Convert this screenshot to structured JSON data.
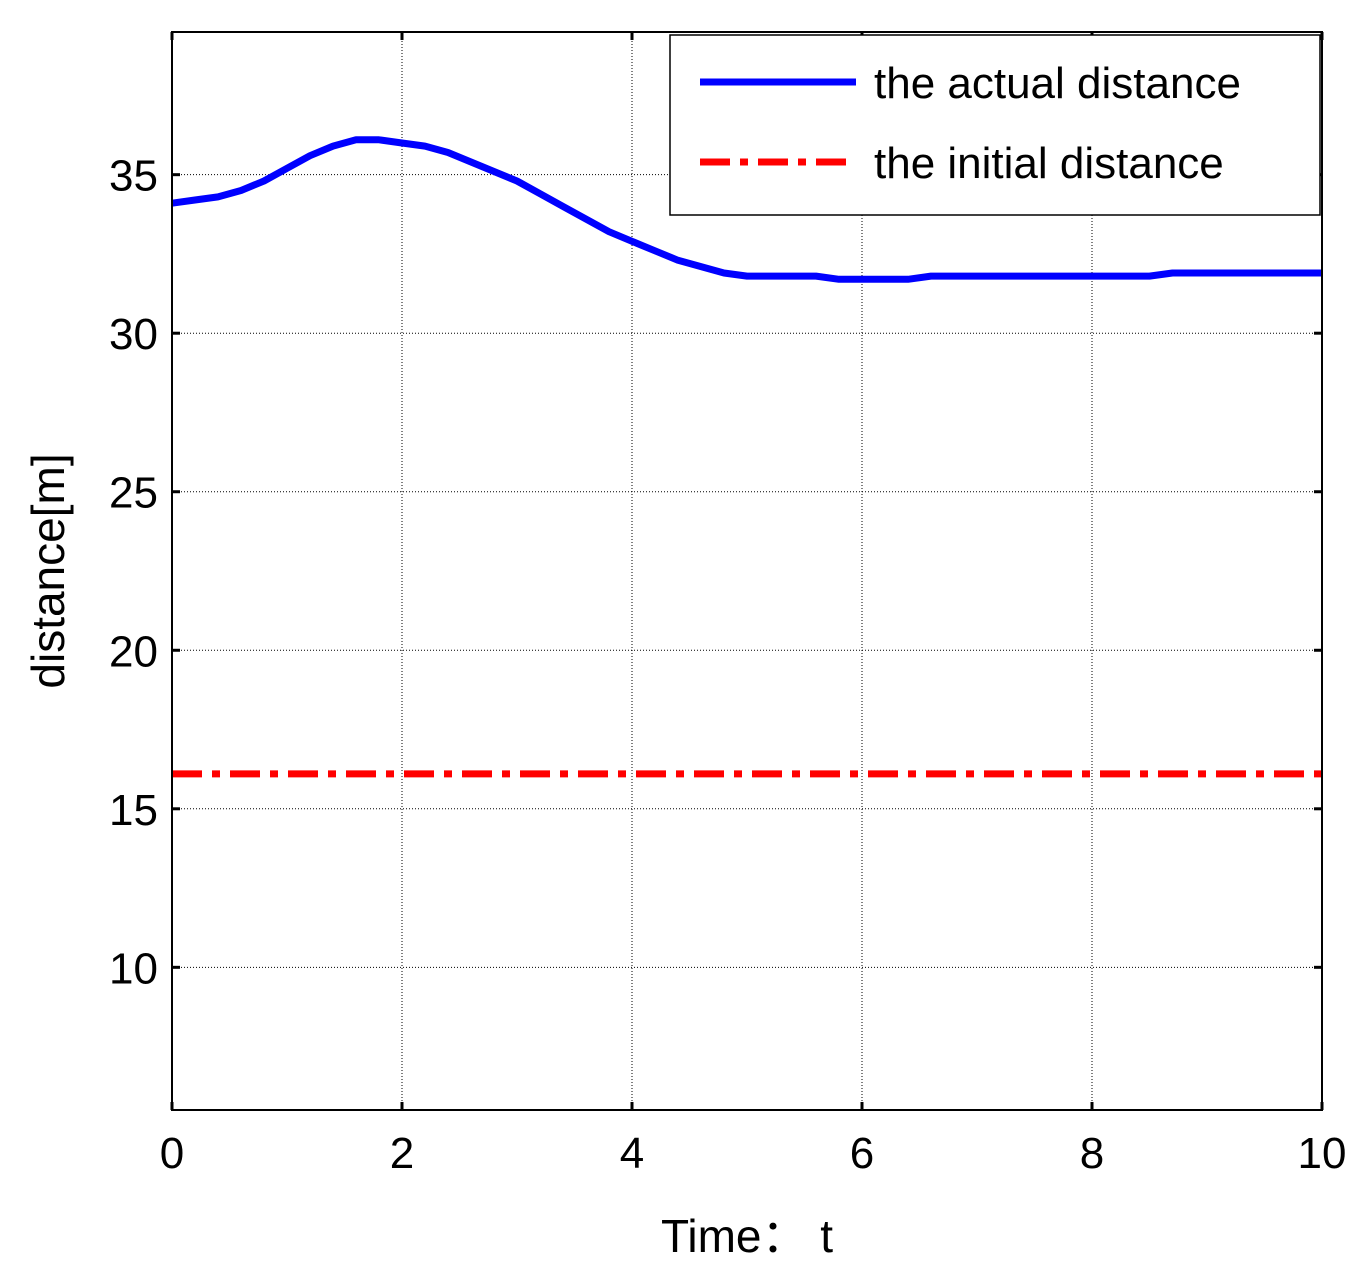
{
  "chart_data": {
    "type": "line",
    "title": "",
    "xlabel": "Time： t",
    "ylabel": "distance[m]",
    "xlim": [
      0,
      10
    ],
    "ylim": [
      5.5,
      39.5
    ],
    "xticks": [
      "0",
      "2",
      "4",
      "6",
      "8",
      "10"
    ],
    "yticks": [
      "10",
      "15",
      "20",
      "25",
      "30",
      "35"
    ],
    "grid": true,
    "legend_position": "top-right",
    "series": [
      {
        "name": "the actual distance",
        "color": "#0000ff",
        "style": "solid",
        "x": [
          0,
          0.2,
          0.4,
          0.6,
          0.8,
          1.0,
          1.2,
          1.4,
          1.6,
          1.8,
          2.0,
          2.2,
          2.4,
          2.6,
          2.8,
          3.0,
          3.2,
          3.4,
          3.6,
          3.8,
          4.0,
          4.2,
          4.4,
          4.6,
          4.8,
          5.0,
          5.2,
          5.4,
          5.6,
          5.8,
          6.0,
          6.2,
          6.4,
          6.6,
          6.8,
          7.0,
          7.5,
          8.0,
          8.5,
          8.7,
          9.0,
          9.5,
          10.0
        ],
        "y": [
          34.1,
          34.2,
          34.3,
          34.5,
          34.8,
          35.2,
          35.6,
          35.9,
          36.1,
          36.1,
          36.0,
          35.9,
          35.7,
          35.4,
          35.1,
          34.8,
          34.4,
          34.0,
          33.6,
          33.2,
          32.9,
          32.6,
          32.3,
          32.1,
          31.9,
          31.8,
          31.8,
          31.8,
          31.8,
          31.7,
          31.7,
          31.7,
          31.7,
          31.8,
          31.8,
          31.8,
          31.8,
          31.8,
          31.8,
          31.9,
          31.9,
          31.9,
          31.9
        ]
      },
      {
        "name": "the initial distance",
        "color": "#ff0000",
        "style": "dash-dot",
        "x": [
          0,
          10
        ],
        "y": [
          16.1,
          16.1
        ]
      }
    ]
  }
}
